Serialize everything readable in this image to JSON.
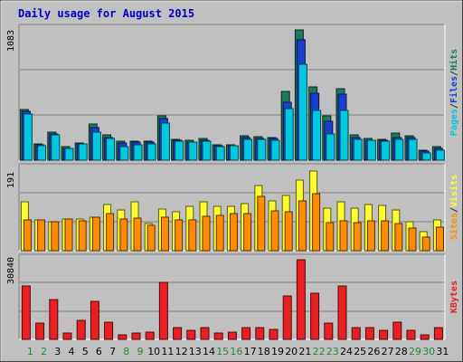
{
  "chart_data": {
    "type": "bar",
    "title": "Daily usage for August 2015",
    "categories": [
      "1",
      "2",
      "3",
      "4",
      "5",
      "6",
      "7",
      "8",
      "9",
      "10",
      "11",
      "12",
      "13",
      "14",
      "15",
      "16",
      "17",
      "18",
      "19",
      "20",
      "21",
      "22",
      "23",
      "24",
      "25",
      "26",
      "27",
      "28",
      "29",
      "30",
      "31"
    ],
    "weekend_days": [
      "1",
      "2",
      "8",
      "9",
      "15",
      "16",
      "22",
      "23",
      "29",
      "30"
    ],
    "panels": [
      {
        "id": "hits",
        "max_label": "1083",
        "ylim": [
          0,
          1083
        ],
        "legend": [
          {
            "text": "Pages",
            "color": "#00c8e0"
          },
          {
            "text": "/",
            "color": "#333333"
          },
          {
            "text": "Files",
            "color": "#1a3fd0"
          },
          {
            "text": "/",
            "color": "#333333"
          },
          {
            "text": "Hits",
            "color": "#1b7a5a"
          }
        ],
        "series": [
          {
            "name": "Hits",
            "color": "#1b7a5a",
            "values": [
              423,
              135,
              235,
              115,
              143,
              304,
              210,
              156,
              160,
              160,
              372,
              176,
              163,
              178,
              130,
              131,
              201,
              197,
              190,
              572,
              1083,
              610,
              370,
              593,
              207,
              180,
              175,
              223,
              200,
              80,
              111
            ]
          },
          {
            "name": "Files",
            "color": "#1a3fd0",
            "values": [
              405,
              128,
              215,
              100,
              138,
              270,
              190,
              144,
              148,
              148,
              345,
              166,
              153,
              168,
              120,
              121,
              186,
              183,
              178,
              480,
              1003,
              555,
              320,
              550,
              187,
              167,
              167,
              190,
              186,
              72,
              98
            ]
          },
          {
            "name": "Pages",
            "color": "#00c8e0",
            "values": [
              381,
              121,
              209,
              97,
              132,
              235,
              180,
              111,
              131,
              137,
              312,
              157,
              147,
              156,
              115,
              118,
              172,
              171,
              164,
              430,
              799,
              410,
              215,
              411,
              170,
              165,
              155,
              176,
              176,
              61,
              83
            ]
          }
        ]
      },
      {
        "id": "visits",
        "max_label": "191",
        "ylim": [
          0,
          191
        ],
        "legend": [
          {
            "text": "Sites",
            "color": "#ff8c00"
          },
          {
            "text": "/",
            "color": "#333333"
          },
          {
            "text": "Visits",
            "color": "#ffff30"
          }
        ],
        "series": [
          {
            "name": "Visits",
            "color": "#ffff30",
            "values": [
              115,
              72,
              68,
              75,
              75,
              78,
              108,
              96,
              115,
              64,
              98,
              92,
              104,
              114,
              104,
              104,
              110,
              153,
              116,
              130,
              165,
              186,
              100,
              114,
              100,
              108,
              106,
              96,
              68,
              44,
              73
            ]
          },
          {
            "name": "Sites",
            "color": "#ff8c00",
            "values": [
              73,
              72,
              68,
              75,
              71,
              78,
              88,
              74,
              76,
              60,
              78,
              72,
              73,
              81,
              82,
              87,
              88,
              128,
              94,
              91,
              117,
              133,
              65,
              71,
              66,
              71,
              69,
              64,
              53,
              32,
              56
            ]
          }
        ]
      },
      {
        "id": "kbytes",
        "max_label": "30840",
        "ylim": [
          0,
          30840
        ],
        "legend": [
          {
            "text": "KBytes",
            "color": "#e82020"
          }
        ],
        "series": [
          {
            "name": "KBytes",
            "color": "#e82020",
            "values": [
              20730,
              6360,
              15470,
              2360,
              7430,
              14680,
              6740,
              1690,
              2360,
              2700,
              22100,
              4720,
              3370,
              4720,
              2360,
              2700,
              4720,
              4390,
              3710,
              16860,
              30840,
              17870,
              6400,
              20570,
              4720,
              4720,
              3370,
              6740,
              3370,
              1690,
              4390
            ]
          }
        ]
      }
    ]
  }
}
